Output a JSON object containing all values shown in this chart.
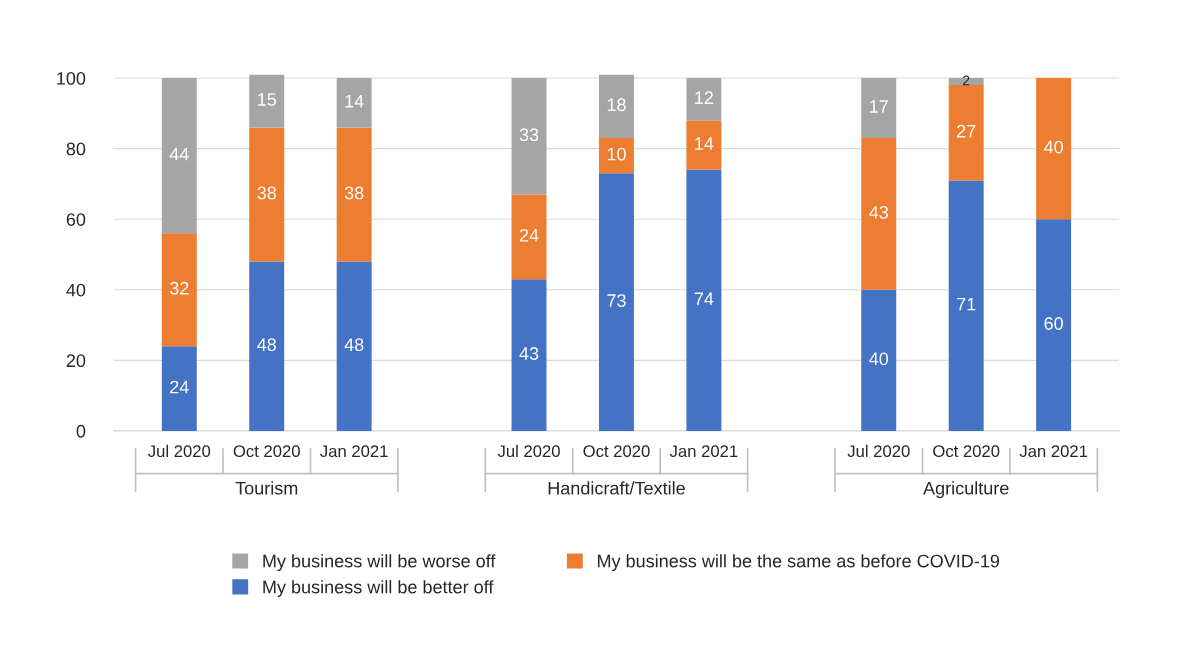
{
  "chart_data": {
    "type": "bar",
    "stacked": true,
    "categories": [
      "Jul 2020",
      "Oct 2020",
      "Jan 2021",
      null,
      "Jul 2020",
      "Oct 2020",
      "Jan 2021",
      null,
      "Jul 2020",
      "Oct 2020",
      "Jan 2021"
    ],
    "series": [
      {
        "name": "My business will be better off",
        "color": "#4472c4",
        "values": [
          24,
          48,
          48,
          null,
          43,
          73,
          74,
          null,
          40,
          71,
          60
        ],
        "value_labels": [
          "24",
          "48",
          "48",
          null,
          "43",
          "73",
          "74",
          null,
          "40",
          "71",
          "60"
        ]
      },
      {
        "name": "My business will be the same as before COVID-19",
        "color": "#ed7d31",
        "values": [
          32,
          38,
          38,
          null,
          24,
          10,
          14,
          null,
          43,
          27,
          40
        ],
        "value_labels": [
          "32",
          "38",
          "38",
          null,
          "24",
          "10",
          "14",
          null,
          "43",
          "27",
          "40"
        ]
      },
      {
        "name": "My business will be worse off",
        "color": "#a5a5a5",
        "values": [
          44,
          15,
          14,
          null,
          33,
          18,
          12,
          null,
          17,
          2,
          null
        ],
        "value_labels": [
          "44",
          "15",
          "14",
          null,
          "33",
          "18",
          "12",
          null,
          "17",
          "2",
          null
        ]
      }
    ],
    "annotations": [
      "Tourism",
      "Handicraft/Textile",
      "Agriculture"
    ],
    "ylim": [
      0,
      101
    ],
    "yticks": [
      0,
      20,
      40,
      60,
      80,
      100
    ],
    "grid": "y",
    "legend": "bottom"
  }
}
